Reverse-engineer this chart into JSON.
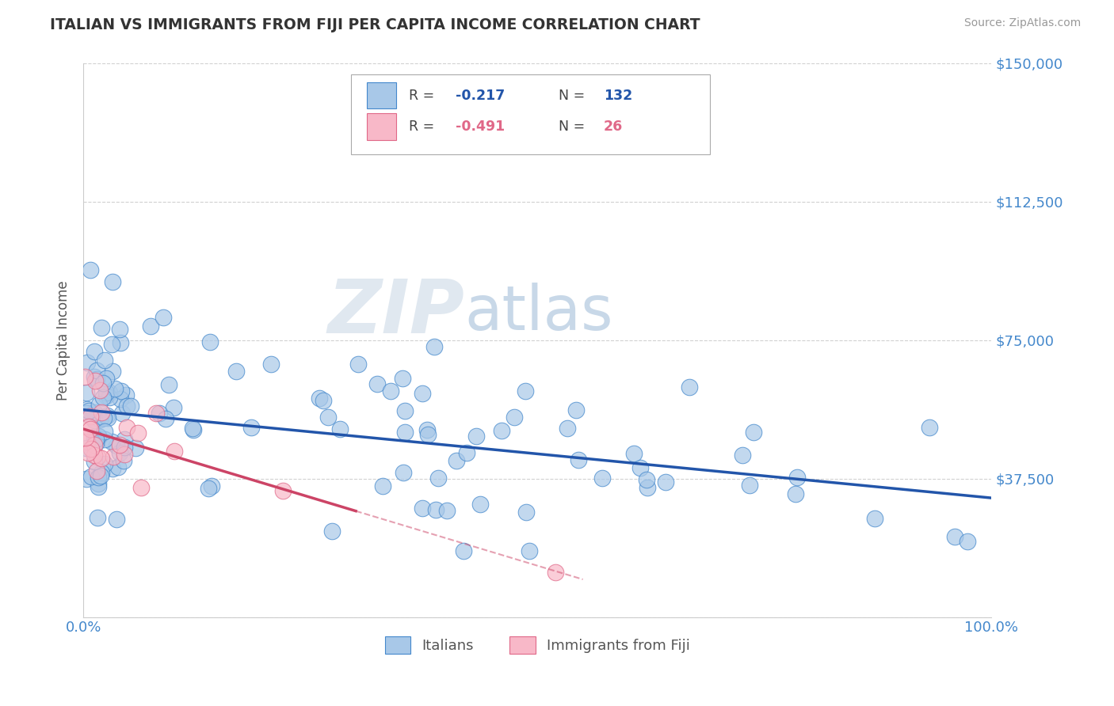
{
  "title": "ITALIAN VS IMMIGRANTS FROM FIJI PER CAPITA INCOME CORRELATION CHART",
  "source": "Source: ZipAtlas.com",
  "ylabel": "Per Capita Income",
  "xlim": [
    0,
    1.0
  ],
  "ylim": [
    0,
    150000
  ],
  "yticks": [
    0,
    37500,
    75000,
    112500,
    150000
  ],
  "ytick_labels": [
    "",
    "$37,500",
    "$75,000",
    "$112,500",
    "$150,000"
  ],
  "blue_color": "#a8c8e8",
  "blue_edge_color": "#4488cc",
  "pink_color": "#f8b8c8",
  "pink_edge_color": "#e06888",
  "blue_line_color": "#2255aa",
  "pink_line_color": "#cc4466",
  "grid_color": "#cccccc",
  "tick_color": "#4488cc",
  "watermark_color": "#e0e8f0",
  "title_color": "#333333",
  "source_color": "#999999"
}
